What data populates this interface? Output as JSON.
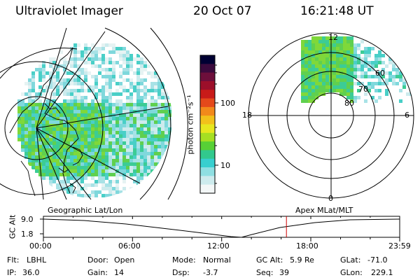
{
  "header": {
    "instrument": "Ultraviolet Imager",
    "date": "20 Oct 07",
    "time": "16:21:48 UT"
  },
  "colorbar": {
    "unit_label": "photon cm⁻²s⁻¹",
    "ticks": [
      "100",
      "10"
    ],
    "colors": [
      "#000033",
      "#3b0a3d",
      "#6d0f3b",
      "#9c0f2a",
      "#c81b19",
      "#e4491b",
      "#f2891b",
      "#f2c11b",
      "#e7e71f",
      "#a6df22",
      "#57d036",
      "#32c98d",
      "#38cfcf",
      "#8fdfe2",
      "#cdebed",
      "#f3f7f7"
    ]
  },
  "left_panel": {
    "label": "Geographic Lat/Lon"
  },
  "right_panel": {
    "label": "Apex MLat/MLT",
    "mlt_labels": {
      "top": "12",
      "left": "18",
      "right": "6",
      "bottom": "0"
    },
    "lat_labels": [
      "60",
      "70",
      "80"
    ]
  },
  "timeline": {
    "ylabel": "GC Alt",
    "y_ticks": [
      "9.0",
      "1.8"
    ],
    "x_ticks": [
      "00:00",
      "06:00",
      "12:00",
      "18:00",
      "23:59"
    ],
    "current_hour": 16.36,
    "marker_color": "#cc0000"
  },
  "status": {
    "flt_label": "Flt:",
    "flt_value": "LBHL",
    "ip_label": "IP:",
    "ip_value": "36.0",
    "door_label": "Door:",
    "door_value": "Open",
    "gain_label": "Gain:",
    "gain_value": "14",
    "mode_label": "Mode:",
    "mode_value": "Normal",
    "dsp_label": "Dsp:",
    "dsp_value": "-3.7",
    "gcalt_label": "GC Alt:",
    "gcalt_value": "5.9 Re",
    "seq_label": "Seq:",
    "seq_value": "39",
    "glat_label": "GLat:",
    "glat_value": "-71.0",
    "glon_label": "GLon:",
    "glon_value": "229.1"
  }
}
